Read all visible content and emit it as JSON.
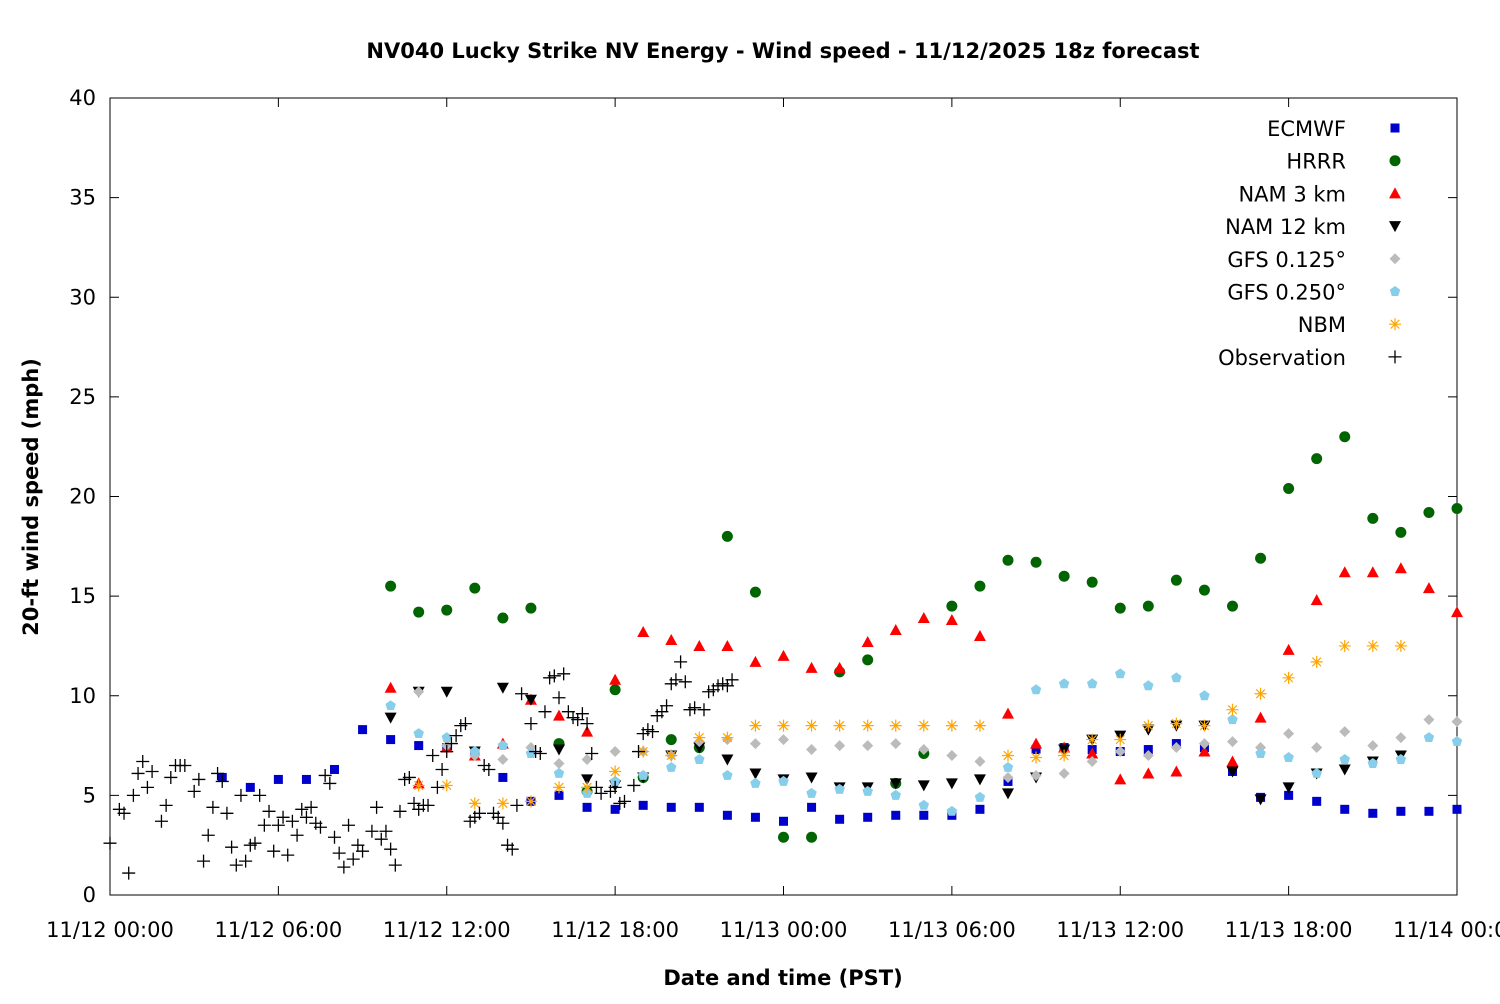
{
  "chart_data": {
    "type": "scatter",
    "title": "NV040 Lucky Strike NV Energy - Wind speed - 11/12/2025 18z forecast",
    "x_label": "Date and time (PST)",
    "y_label": "20-ft wind speed (mph)",
    "xlim": [
      "11/12 00:00",
      "11/14 00:00"
    ],
    "xticks": [
      "11/12 00:00",
      "11/12 06:00",
      "11/12 12:00",
      "11/12 18:00",
      "11/13 00:00",
      "11/13 06:00",
      "11/13 12:00",
      "11/13 18:00",
      "11/14 00:00"
    ],
    "ylim": [
      0,
      40
    ],
    "yticks": [
      0,
      5,
      10,
      15,
      20,
      25,
      30,
      35,
      40
    ],
    "grid": false,
    "legend": "top-right",
    "series": [
      {
        "name": "ECMWF",
        "color": "#0000cc",
        "marker": "square",
        "x": [
          "11/12 04:00",
          "11/12 05:00",
          "11/12 06:00",
          "11/12 07:00",
          "11/12 08:00",
          "11/12 09:00",
          "11/12 10:00",
          "11/12 11:00",
          "11/12 12:00",
          "11/12 13:00",
          "11/12 14:00",
          "11/12 15:00",
          "11/12 16:00",
          "11/12 17:00",
          "11/12 18:00",
          "11/12 19:00",
          "11/12 20:00",
          "11/12 21:00",
          "11/12 22:00",
          "11/12 23:00",
          "11/13 00:00",
          "11/13 01:00",
          "11/13 02:00",
          "11/13 03:00",
          "11/13 04:00",
          "11/13 05:00",
          "11/13 06:00",
          "11/13 07:00",
          "11/13 08:00",
          "11/13 09:00",
          "11/13 10:00",
          "11/13 11:00",
          "11/13 12:00",
          "11/13 13:00",
          "11/13 14:00",
          "11/13 15:00",
          "11/13 16:00",
          "11/13 17:00",
          "11/13 18:00",
          "11/13 19:00",
          "11/13 20:00",
          "11/13 21:00",
          "11/13 22:00",
          "11/13 23:00",
          "11/14 00:00"
        ],
        "values": [
          5.9,
          5.4,
          5.8,
          5.8,
          6.3,
          8.3,
          7.8,
          7.5,
          7.4,
          7.2,
          5.9,
          4.7,
          5.0,
          4.4,
          4.3,
          4.5,
          4.4,
          4.4,
          4.0,
          3.9,
          3.7,
          4.4,
          3.8,
          3.9,
          4.0,
          4.0,
          4.0,
          4.3,
          5.7,
          7.3,
          7.4,
          7.3,
          7.2,
          7.3,
          7.6,
          7.4,
          6.2,
          4.9,
          5.0,
          4.7,
          4.3,
          4.1,
          4.2,
          4.2,
          4.3
        ]
      },
      {
        "name": "HRRR",
        "color": "#006400",
        "marker": "circle",
        "x": [
          "11/12 10:00",
          "11/12 11:00",
          "11/12 12:00",
          "11/12 13:00",
          "11/12 14:00",
          "11/12 15:00",
          "11/12 16:00",
          "11/12 17:00",
          "11/12 18:00",
          "11/12 19:00",
          "11/12 20:00",
          "11/12 21:00",
          "11/12 22:00",
          "11/12 23:00",
          "11/13 00:00",
          "11/13 01:00",
          "11/13 02:00",
          "11/13 03:00",
          "11/13 04:00",
          "11/13 05:00",
          "11/13 06:00",
          "11/13 07:00",
          "11/13 08:00",
          "11/13 09:00",
          "11/13 10:00",
          "11/13 11:00",
          "11/13 12:00",
          "11/13 13:00",
          "11/13 14:00",
          "11/13 15:00",
          "11/13 16:00",
          "11/13 17:00",
          "11/13 18:00",
          "11/13 19:00",
          "11/13 20:00",
          "11/13 21:00",
          "11/13 22:00",
          "11/13 23:00",
          "11/14 00:00"
        ],
        "values": [
          15.5,
          14.2,
          14.3,
          15.4,
          13.9,
          14.4,
          7.6,
          5.2,
          10.3,
          5.9,
          7.8,
          7.4,
          18.0,
          15.2,
          2.9,
          2.9,
          11.2,
          11.8,
          5.6,
          7.1,
          14.5,
          15.5,
          16.8,
          16.7,
          16.0,
          15.7,
          14.4,
          14.5,
          15.8,
          15.3,
          14.5,
          16.9,
          20.4,
          21.9,
          23.0,
          18.9,
          18.2,
          19.2,
          19.4
        ]
      },
      {
        "name": "NAM 3 km",
        "color": "#ff0000",
        "marker": "triangle-up",
        "x": [
          "11/12 10:00",
          "11/12 11:00",
          "11/12 12:00",
          "11/12 13:00",
          "11/12 14:00",
          "11/12 15:00",
          "11/12 16:00",
          "11/12 17:00",
          "11/12 18:00",
          "11/12 19:00",
          "11/12 20:00",
          "11/12 21:00",
          "11/12 22:00",
          "11/12 23:00",
          "11/13 00:00",
          "11/13 01:00",
          "11/13 02:00",
          "11/13 03:00",
          "11/13 04:00",
          "11/13 05:00",
          "11/13 06:00",
          "11/13 07:00",
          "11/13 08:00",
          "11/13 09:00",
          "11/13 10:00",
          "11/13 11:00",
          "11/13 12:00",
          "11/13 13:00",
          "11/13 14:00",
          "11/13 15:00",
          "11/13 16:00",
          "11/13 17:00",
          "11/13 18:00",
          "11/13 19:00",
          "11/13 20:00",
          "11/13 21:00",
          "11/13 22:00",
          "11/13 23:00",
          "11/14 00:00"
        ],
        "values": [
          10.4,
          5.6,
          7.4,
          7.0,
          7.6,
          9.8,
          9.0,
          8.2,
          10.8,
          13.2,
          12.8,
          12.5,
          12.5,
          11.7,
          12.0,
          11.4,
          11.4,
          12.7,
          13.3,
          13.9,
          13.8,
          13.0,
          9.1,
          7.6,
          7.4,
          7.1,
          5.8,
          6.1,
          6.2,
          7.2,
          6.7,
          8.9,
          12.3,
          14.8,
          16.2,
          16.2,
          16.4,
          15.4,
          14.2
        ]
      },
      {
        "name": "NAM 12 km",
        "color": "#000000",
        "marker": "triangle-down",
        "x": [
          "11/12 10:00",
          "11/12 11:00",
          "11/12 12:00",
          "11/12 13:00",
          "11/12 14:00",
          "11/12 15:00",
          "11/12 16:00",
          "11/12 17:00",
          "11/12 18:00",
          "11/12 19:00",
          "11/12 20:00",
          "11/12 21:00",
          "11/12 22:00",
          "11/12 23:00",
          "11/13 00:00",
          "11/13 01:00",
          "11/13 02:00",
          "11/13 03:00",
          "11/13 04:00",
          "11/13 05:00",
          "11/13 06:00",
          "11/13 07:00",
          "11/13 08:00",
          "11/13 09:00",
          "11/13 10:00",
          "11/13 11:00",
          "11/13 12:00",
          "11/13 13:00",
          "11/13 14:00",
          "11/13 15:00",
          "11/13 16:00",
          "11/13 17:00",
          "11/13 18:00",
          "11/13 19:00",
          "11/13 20:00",
          "11/13 21:00",
          "11/13 22:00"
        ],
        "values": [
          8.9,
          10.2,
          10.2,
          7.2,
          10.4,
          9.8,
          7.3,
          5.8,
          5.5,
          5.9,
          7.0,
          7.4,
          6.8,
          6.1,
          5.8,
          5.9,
          5.4,
          5.4,
          5.6,
          5.5,
          5.6,
          5.8,
          5.1,
          5.9,
          7.3,
          7.8,
          8.0,
          8.3,
          8.5,
          8.5,
          6.2,
          4.8,
          5.4,
          6.1,
          6.3,
          6.7,
          7.0
        ]
      },
      {
        "name": "GFS 0.125°",
        "color": "#bbbbbb",
        "marker": "diamond",
        "x": [
          "11/12 11:00",
          "11/12 12:00",
          "11/12 13:00",
          "11/12 14:00",
          "11/12 15:00",
          "11/12 16:00",
          "11/12 17:00",
          "11/12 18:00",
          "11/12 19:00",
          "11/12 20:00",
          "11/12 21:00",
          "11/12 22:00",
          "11/12 23:00",
          "11/13 00:00",
          "11/13 01:00",
          "11/13 02:00",
          "11/13 03:00",
          "11/13 04:00",
          "11/13 05:00",
          "11/13 06:00",
          "11/13 07:00",
          "11/13 08:00",
          "11/13 09:00",
          "11/13 10:00",
          "11/13 11:00",
          "11/13 12:00",
          "11/13 13:00",
          "11/13 14:00",
          "11/13 15:00",
          "11/13 16:00",
          "11/13 17:00",
          "11/13 18:00",
          "11/13 19:00",
          "11/13 20:00",
          "11/13 21:00",
          "11/13 22:00",
          "11/13 23:00",
          "11/14 00:00"
        ],
        "values": [
          10.2,
          7.5,
          7.0,
          6.8,
          7.4,
          6.6,
          6.8,
          7.2,
          7.2,
          7.0,
          7.7,
          7.8,
          7.6,
          7.8,
          7.3,
          7.5,
          7.5,
          7.6,
          7.3,
          7.0,
          6.7,
          5.9,
          6.0,
          6.1,
          6.7,
          7.2,
          7.0,
          7.4,
          7.6,
          7.7,
          7.4,
          8.1,
          7.4,
          8.2,
          7.5,
          7.9,
          8.8,
          8.7
        ]
      },
      {
        "name": "GFS 0.250°",
        "color": "#87ceeb",
        "marker": "pentagon",
        "x": [
          "11/12 10:00",
          "11/12 11:00",
          "11/12 12:00",
          "11/12 13:00",
          "11/12 14:00",
          "11/12 15:00",
          "11/12 16:00",
          "11/12 17:00",
          "11/12 18:00",
          "11/12 19:00",
          "11/12 20:00",
          "11/12 21:00",
          "11/12 22:00",
          "11/12 23:00",
          "11/13 00:00",
          "11/13 01:00",
          "11/13 02:00",
          "11/13 03:00",
          "11/13 04:00",
          "11/13 05:00",
          "11/13 06:00",
          "11/13 07:00",
          "11/13 08:00",
          "11/13 09:00",
          "11/13 10:00",
          "11/13 11:00",
          "11/13 12:00",
          "11/13 13:00",
          "11/13 14:00",
          "11/13 15:00",
          "11/13 16:00",
          "11/13 17:00",
          "11/13 18:00",
          "11/13 19:00",
          "11/13 20:00",
          "11/13 21:00",
          "11/13 22:00",
          "11/13 23:00",
          "11/14 00:00"
        ],
        "values": [
          9.5,
          8.1,
          7.9,
          7.2,
          7.5,
          7.1,
          6.1,
          5.1,
          5.7,
          6.0,
          6.4,
          6.8,
          6.0,
          5.6,
          5.7,
          5.1,
          5.3,
          5.2,
          5.0,
          4.5,
          4.2,
          4.9,
          6.4,
          10.3,
          10.6,
          10.6,
          11.1,
          10.5,
          10.9,
          10.0,
          8.8,
          7.1,
          6.9,
          6.1,
          6.8,
          6.6,
          6.8,
          7.9,
          7.7
        ]
      },
      {
        "name": "NBM",
        "color": "#ffa500",
        "marker": "asterisk",
        "x": [
          "11/12 11:00",
          "11/12 12:00",
          "11/12 13:00",
          "11/12 14:00",
          "11/12 15:00",
          "11/12 16:00",
          "11/12 17:00",
          "11/12 18:00",
          "11/12 19:00",
          "11/12 20:00",
          "11/12 21:00",
          "11/12 22:00",
          "11/12 23:00",
          "11/13 00:00",
          "11/13 01:00",
          "11/13 02:00",
          "11/13 03:00",
          "11/13 04:00",
          "11/13 05:00",
          "11/13 06:00",
          "11/13 07:00",
          "11/13 08:00",
          "11/13 09:00",
          "11/13 10:00",
          "11/13 11:00",
          "11/13 12:00",
          "11/13 13:00",
          "11/13 14:00",
          "11/13 15:00",
          "11/13 16:00",
          "11/13 17:00",
          "11/13 18:00",
          "11/13 19:00",
          "11/13 20:00",
          "11/13 21:00",
          "11/13 22:00"
        ],
        "values": [
          5.5,
          5.5,
          4.6,
          4.6,
          4.7,
          5.4,
          5.4,
          6.2,
          7.2,
          7.0,
          7.9,
          7.9,
          8.5,
          8.5,
          8.5,
          8.5,
          8.5,
          8.5,
          8.5,
          8.5,
          8.5,
          7.0,
          6.9,
          7.0,
          7.8,
          7.8,
          8.5,
          8.6,
          8.5,
          9.3,
          10.1,
          10.9,
          11.7,
          12.5,
          12.5,
          12.5
        ]
      },
      {
        "name": "Observation",
        "color": "#000000",
        "marker": "plus",
        "x": [
          "11/12 00:00",
          "11/12 00:20",
          "11/12 00:30",
          "11/12 00:40",
          "11/12 00:50",
          "11/12 01:00",
          "11/12 01:10",
          "11/12 01:20",
          "11/12 01:30",
          "11/12 01:50",
          "11/12 02:00",
          "11/12 02:10",
          "11/12 02:20",
          "11/12 02:30",
          "11/12 02:40",
          "11/12 03:00",
          "11/12 03:10",
          "11/12 03:20",
          "11/12 03:30",
          "11/12 03:40",
          "11/12 03:50",
          "11/12 04:00",
          "11/12 04:10",
          "11/12 04:20",
          "11/12 04:30",
          "11/12 04:40",
          "11/12 04:50",
          "11/12 05:00",
          "11/12 05:10",
          "11/12 05:20",
          "11/12 05:30",
          "11/12 05:40",
          "11/12 05:50",
          "11/12 06:00",
          "11/12 06:10",
          "11/12 06:20",
          "11/12 06:30",
          "11/12 06:40",
          "11/12 06:50",
          "11/12 07:00",
          "11/12 07:10",
          "11/12 07:20",
          "11/12 07:30",
          "11/12 07:40",
          "11/12 07:50",
          "11/12 08:00",
          "11/12 08:10",
          "11/12 08:20",
          "11/12 08:30",
          "11/12 08:40",
          "11/12 08:50",
          "11/12 09:00",
          "11/12 09:20",
          "11/12 09:30",
          "11/12 09:40",
          "11/12 09:50",
          "11/12 10:00",
          "11/12 10:10",
          "11/12 10:20",
          "11/12 10:30",
          "11/12 10:40",
          "11/12 10:50",
          "11/12 11:00",
          "11/12 11:10",
          "11/12 11:20",
          "11/12 11:30",
          "11/12 11:40",
          "11/12 11:50",
          "11/12 12:00",
          "11/12 12:10",
          "11/12 12:20",
          "11/12 12:30",
          "11/12 12:40",
          "11/12 12:50",
          "11/12 13:00",
          "11/12 13:10",
          "11/12 13:20",
          "11/12 13:30",
          "11/12 13:40",
          "11/12 13:50",
          "11/12 14:00",
          "11/12 14:10",
          "11/12 14:20",
          "11/12 14:30",
          "11/12 14:40",
          "11/12 15:00",
          "11/12 15:10",
          "11/12 15:20",
          "11/12 15:30",
          "11/12 15:40",
          "11/12 15:50",
          "11/12 16:00",
          "11/12 16:10",
          "11/12 16:20",
          "11/12 16:30",
          "11/12 16:40",
          "11/12 16:50",
          "11/12 17:00",
          "11/12 17:10",
          "11/12 17:20",
          "11/12 17:30",
          "11/12 17:50",
          "11/12 18:00",
          "11/12 18:10",
          "11/12 18:20",
          "11/12 18:40",
          "11/12 18:50",
          "11/12 19:00",
          "11/12 19:10",
          "11/12 19:20",
          "11/12 19:30",
          "11/12 19:40",
          "11/12 19:50",
          "11/12 20:00",
          "11/12 20:10",
          "11/12 20:20",
          "11/12 20:30",
          "11/12 20:40",
          "11/12 20:50",
          "11/12 21:10",
          "11/12 21:20",
          "11/12 21:30",
          "11/12 21:40",
          "11/12 21:50",
          "11/12 22:00",
          "11/12 22:10"
        ],
        "values": [
          2.6,
          4.3,
          4.1,
          1.1,
          5.0,
          6.1,
          6.7,
          5.4,
          6.2,
          3.7,
          4.5,
          5.9,
          6.5,
          6.5,
          6.5,
          5.2,
          5.8,
          1.7,
          3.0,
          4.4,
          6.1,
          5.7,
          4.1,
          2.4,
          1.5,
          5.0,
          1.7,
          2.5,
          2.6,
          5.0,
          3.5,
          4.2,
          2.2,
          3.5,
          3.9,
          2.0,
          3.7,
          3.0,
          4.3,
          3.9,
          4.4,
          3.6,
          3.4,
          6.0,
          5.6,
          2.9,
          2.1,
          1.4,
          3.5,
          1.8,
          2.5,
          2.2,
          3.2,
          4.4,
          2.8,
          3.2,
          2.3,
          1.5,
          4.2,
          5.8,
          5.9,
          4.6,
          4.3,
          4.5,
          4.5,
          7.0,
          5.4,
          6.3,
          7.2,
          7.6,
          8.0,
          8.5,
          8.6,
          3.7,
          3.9,
          4.1,
          6.5,
          6.3,
          4.1,
          3.9,
          3.6,
          2.5,
          2.3,
          4.5,
          10.1,
          8.6,
          7.2,
          7.1,
          9.2,
          10.9,
          11.0,
          9.9,
          11.1,
          9.2,
          8.9,
          8.8,
          9.1,
          8.6,
          7.1,
          5.4,
          5.1,
          5.2,
          5.4,
          4.6,
          4.7,
          5.5,
          7.2,
          8.1,
          8.3,
          8.2,
          9.0,
          9.2,
          9.5,
          10.6,
          10.8,
          11.7,
          10.7,
          9.3,
          9.4,
          9.3,
          10.2,
          10.3,
          10.5,
          10.6,
          10.5,
          10.8
        ]
      }
    ]
  }
}
